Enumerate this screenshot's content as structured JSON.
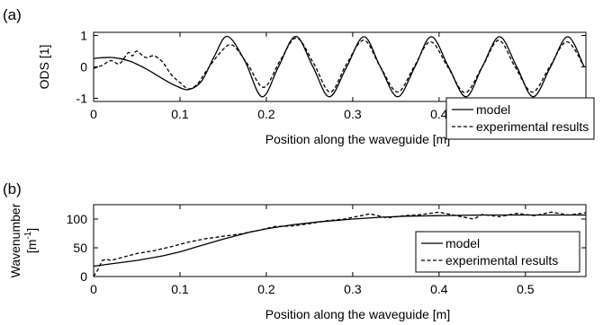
{
  "chart_data": [
    {
      "panel_label": "(a)",
      "type": "line",
      "xlabel": "Position along the waveguide [m]",
      "ylabel": "ODS [1]",
      "xlim": [
        0,
        0.57
      ],
      "ylim": [
        -1.1,
        1.1
      ],
      "x_ticks": [
        "0",
        "0.1",
        "0.2",
        "0.3",
        "0.4"
      ],
      "y_ticks": [
        "-1",
        "0",
        "1"
      ],
      "legend": [
        "model",
        "experimental results"
      ],
      "legend_position": "bottom-right",
      "series": [
        {
          "name": "model",
          "style": "solid",
          "x": [
            0,
            0.02,
            0.04,
            0.06,
            0.08,
            0.095,
            0.11,
            0.125,
            0.14,
            0.155,
            0.175,
            0.195,
            0.214,
            0.234,
            0.254,
            0.273,
            0.293,
            0.313,
            0.332,
            0.352,
            0.372,
            0.391,
            0.411,
            0.431,
            0.45,
            0.47,
            0.49,
            0.509,
            0.529,
            0.549,
            0.568
          ],
          "values": [
            0.27,
            0.3,
            0.2,
            -0.05,
            -0.38,
            -0.6,
            -0.72,
            -0.45,
            0.35,
            0.97,
            0.2,
            -0.95,
            0.0,
            0.97,
            0.0,
            -0.95,
            0.0,
            0.96,
            0.0,
            -0.95,
            0.0,
            0.96,
            0.0,
            -0.95,
            0.0,
            0.96,
            0.0,
            -0.95,
            0.0,
            0.96,
            0.0
          ]
        },
        {
          "name": "experimental results",
          "style": "dashed",
          "x": [
            0,
            0.01,
            0.02,
            0.03,
            0.04,
            0.045,
            0.05,
            0.06,
            0.07,
            0.08,
            0.09,
            0.1,
            0.11,
            0.12,
            0.13,
            0.145,
            0.16,
            0.178,
            0.197,
            0.216,
            0.235,
            0.255,
            0.274,
            0.293,
            0.313,
            0.332,
            0.352,
            0.371,
            0.39,
            0.41,
            0.43,
            0.45,
            0.469,
            0.488,
            0.508,
            0.528,
            0.548,
            0.568
          ],
          "values": [
            -0.05,
            0.05,
            0.2,
            0.1,
            0.45,
            0.35,
            0.5,
            0.3,
            0.35,
            0.15,
            -0.25,
            -0.5,
            -0.7,
            -0.55,
            -0.15,
            0.4,
            0.7,
            0.1,
            -0.65,
            0.2,
            0.92,
            0.1,
            -0.8,
            0.1,
            0.85,
            0.0,
            -0.8,
            0.0,
            0.8,
            0.0,
            -0.82,
            0.0,
            0.85,
            0.0,
            -0.8,
            0.0,
            0.8,
            0.0
          ]
        }
      ]
    },
    {
      "panel_label": "(b)",
      "type": "line",
      "xlabel": "Position along the waveguide [m]",
      "ylabel_lines": [
        "Wavenumber",
        "[m",
        "-1",
        "]"
      ],
      "xlim": [
        0,
        0.57
      ],
      "ylim": [
        0,
        125
      ],
      "x_ticks": [
        "0",
        "0.1",
        "0.2",
        "0.3",
        "0.4",
        "0.5"
      ],
      "y_ticks": [
        "0",
        "50",
        "100"
      ],
      "legend": [
        "model",
        "experimental results"
      ],
      "legend_position": "bottom-right",
      "series": [
        {
          "name": "model",
          "style": "solid",
          "x": [
            0,
            0.02,
            0.05,
            0.08,
            0.1,
            0.12,
            0.15,
            0.18,
            0.2,
            0.23,
            0.26,
            0.3,
            0.33,
            0.36,
            0.4,
            0.45,
            0.5,
            0.57
          ],
          "values": [
            18,
            22,
            28,
            36,
            43,
            52,
            65,
            77,
            83,
            90,
            95,
            100,
            103,
            105,
            106,
            107,
            107,
            107
          ]
        },
        {
          "name": "experimental results",
          "style": "dashed",
          "x": [
            0,
            0.005,
            0.01,
            0.015,
            0.02,
            0.03,
            0.05,
            0.07,
            0.09,
            0.11,
            0.13,
            0.15,
            0.17,
            0.19,
            0.21,
            0.23,
            0.25,
            0.27,
            0.29,
            0.31,
            0.32,
            0.34,
            0.36,
            0.38,
            0.4,
            0.42,
            0.44,
            0.45,
            0.47,
            0.49,
            0.51,
            0.53,
            0.55,
            0.57
          ],
          "values": [
            0,
            12,
            28,
            30,
            28,
            32,
            40,
            45,
            52,
            60,
            66,
            70,
            74,
            80,
            87,
            88,
            92,
            97,
            100,
            106,
            109,
            102,
            106,
            108,
            112,
            106,
            100,
            108,
            104,
            110,
            106,
            112,
            107,
            111
          ]
        }
      ]
    }
  ]
}
